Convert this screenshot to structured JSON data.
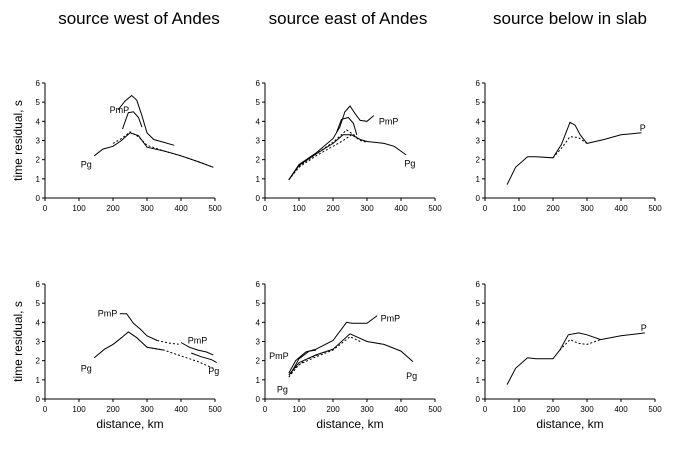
{
  "figure": {
    "columns": [
      "source west of Andes",
      "source east of Andes",
      "source below in slab"
    ],
    "ylabel": "time residual, s",
    "xlabel": "distance, km"
  },
  "chart_data": [
    {
      "type": "line",
      "row": 0,
      "col": 0,
      "xlim": [
        0,
        500
      ],
      "ylim": [
        0,
        6
      ],
      "xticks": [
        0,
        100,
        200,
        300,
        400,
        500
      ],
      "yticks": [
        0,
        1,
        2,
        3,
        4,
        5,
        6
      ],
      "show_xlabel": false,
      "show_ylabel": true,
      "series": [
        {
          "name": "Pg",
          "style": "solid",
          "x": [
            145,
            170,
            200,
            225,
            250,
            275,
            300,
            350,
            400,
            450,
            495
          ],
          "y": [
            2.2,
            2.55,
            2.7,
            3.0,
            3.4,
            3.25,
            2.65,
            2.45,
            2.2,
            1.9,
            1.6
          ]
        },
        {
          "name": "PmP",
          "style": "solid",
          "x": [
            215,
            235,
            255,
            270,
            285,
            300,
            320,
            350,
            380
          ],
          "y": [
            4.6,
            5.05,
            5.35,
            5.1,
            4.3,
            3.4,
            3.05,
            2.9,
            2.75
          ]
        },
        {
          "name": "",
          "style": "solid",
          "x": [
            228,
            245,
            260,
            275,
            285
          ],
          "y": [
            3.6,
            4.45,
            4.5,
            4.2,
            3.7
          ]
        },
        {
          "name": "",
          "style": "dotted",
          "x": [
            200,
            225,
            250,
            275,
            300,
            350,
            400,
            450,
            495
          ],
          "y": [
            2.85,
            3.1,
            3.45,
            3.2,
            2.75,
            2.45,
            2.2,
            1.9,
            1.6
          ]
        }
      ],
      "annotations": [
        {
          "text": "PmP",
          "x": 190,
          "y": 4.6
        },
        {
          "text": "Pg",
          "x": 105,
          "y": 1.75
        }
      ]
    },
    {
      "type": "line",
      "row": 0,
      "col": 1,
      "xlim": [
        0,
        500
      ],
      "ylim": [
        0,
        6
      ],
      "xticks": [
        0,
        100,
        200,
        300,
        400,
        500
      ],
      "yticks": [
        0,
        1,
        2,
        3,
        4,
        5,
        6
      ],
      "show_xlabel": false,
      "show_ylabel": false,
      "series": [
        {
          "name": "Pg",
          "style": "solid",
          "x": [
            70,
            100,
            150,
            200,
            230,
            255,
            280,
            300,
            350,
            380,
            415
          ],
          "y": [
            0.95,
            1.7,
            2.3,
            2.85,
            3.3,
            3.3,
            3.05,
            2.95,
            2.85,
            2.7,
            2.25
          ]
        },
        {
          "name": "PmP",
          "style": "solid",
          "x": [
            70,
            100,
            150,
            200,
            220,
            235,
            250,
            265,
            280,
            300,
            320
          ],
          "y": [
            0.95,
            1.75,
            2.35,
            3.1,
            3.7,
            4.5,
            4.8,
            4.4,
            4.05,
            4.0,
            4.3
          ]
        },
        {
          "name": "",
          "style": "solid",
          "x": [
            210,
            225,
            245,
            260,
            270
          ],
          "y": [
            3.4,
            4.1,
            4.2,
            3.9,
            3.3
          ]
        },
        {
          "name": "",
          "style": "dotted",
          "x": [
            70,
            100,
            150,
            200,
            230,
            255,
            280,
            300
          ],
          "y": [
            0.95,
            1.6,
            2.2,
            2.7,
            3.0,
            3.3,
            3.0,
            2.9
          ]
        },
        {
          "name": "",
          "style": "dotted",
          "x": [
            100,
            150,
            200,
            240,
            270
          ],
          "y": [
            1.65,
            2.3,
            2.9,
            3.55,
            3.2
          ]
        }
      ],
      "annotations": [
        {
          "text": "PmP",
          "x": 335,
          "y": 4.0
        },
        {
          "text": "Pg",
          "x": 410,
          "y": 1.8
        }
      ]
    },
    {
      "type": "line",
      "row": 0,
      "col": 2,
      "xlim": [
        0,
        500
      ],
      "ylim": [
        0,
        6
      ],
      "xticks": [
        0,
        100,
        200,
        300,
        400,
        500
      ],
      "yticks": [
        0,
        1,
        2,
        3,
        4,
        5,
        6
      ],
      "show_xlabel": false,
      "show_ylabel": false,
      "series": [
        {
          "name": "P",
          "style": "solid",
          "x": [
            65,
            90,
            125,
            150,
            200,
            225,
            250,
            265,
            280,
            300,
            350,
            400,
            460
          ],
          "y": [
            0.7,
            1.6,
            2.15,
            2.15,
            2.1,
            2.8,
            3.95,
            3.8,
            3.3,
            2.85,
            3.05,
            3.3,
            3.4
          ]
        },
        {
          "name": "",
          "style": "dotted",
          "x": [
            200,
            225,
            250,
            275,
            300
          ],
          "y": [
            2.1,
            2.6,
            3.2,
            3.15,
            2.85
          ]
        }
      ],
      "annotations": [
        {
          "text": "P",
          "x": 455,
          "y": 3.65
        }
      ]
    },
    {
      "type": "line",
      "row": 1,
      "col": 0,
      "xlim": [
        0,
        500
      ],
      "ylim": [
        0,
        6
      ],
      "xticks": [
        0,
        100,
        200,
        300,
        400,
        500
      ],
      "yticks": [
        0,
        1,
        2,
        3,
        4,
        5,
        6
      ],
      "show_xlabel": true,
      "show_ylabel": true,
      "series": [
        {
          "name": "Pg",
          "style": "solid",
          "x": [
            145,
            175,
            200,
            225,
            245,
            270,
            300,
            350
          ],
          "y": [
            2.15,
            2.6,
            2.85,
            3.2,
            3.5,
            3.2,
            2.7,
            2.55
          ]
        },
        {
          "name": "PmP",
          "style": "solid",
          "x": [
            220,
            240,
            260,
            280,
            300,
            330
          ],
          "y": [
            4.45,
            4.45,
            3.95,
            3.65,
            3.3,
            3.05
          ]
        },
        {
          "name": "",
          "style": "solid",
          "x": [
            400,
            425,
            450,
            475,
            495
          ],
          "y": [
            2.95,
            2.7,
            2.55,
            2.45,
            2.3
          ]
        },
        {
          "name": "",
          "style": "solid",
          "x": [
            430,
            460,
            490,
            505
          ],
          "y": [
            2.4,
            2.2,
            2.05,
            1.9
          ]
        },
        {
          "name": "",
          "style": "dotted",
          "x": [
            300,
            350,
            400,
            450,
            495
          ],
          "y": [
            2.7,
            2.55,
            2.25,
            1.95,
            1.6
          ]
        },
        {
          "name": "",
          "style": "dotted",
          "x": [
            330,
            370,
            400
          ],
          "y": [
            3.05,
            2.9,
            2.85
          ]
        }
      ],
      "annotations": [
        {
          "text": "PmP",
          "x": 155,
          "y": 4.45
        },
        {
          "text": "PmP",
          "x": 420,
          "y": 3.05
        },
        {
          "text": "Pg",
          "x": 105,
          "y": 1.6
        },
        {
          "text": "Pg",
          "x": 480,
          "y": 1.45
        }
      ]
    },
    {
      "type": "line",
      "row": 1,
      "col": 1,
      "xlim": [
        0,
        500
      ],
      "ylim": [
        0,
        6
      ],
      "xticks": [
        0,
        100,
        200,
        300,
        400,
        500
      ],
      "yticks": [
        0,
        1,
        2,
        3,
        4,
        5,
        6
      ],
      "show_xlabel": true,
      "show_ylabel": false,
      "series": [
        {
          "name": "Pg",
          "style": "solid",
          "x": [
            70,
            100,
            150,
            200,
            250,
            300,
            350,
            400,
            435
          ],
          "y": [
            1.25,
            1.9,
            2.3,
            2.6,
            3.4,
            3.0,
            2.85,
            2.5,
            1.95
          ]
        },
        {
          "name": "PmP",
          "style": "solid",
          "x": [
            70,
            90,
            120,
            150,
            200,
            240,
            255,
            300,
            330
          ],
          "y": [
            1.35,
            2.0,
            2.45,
            2.6,
            3.05,
            4.0,
            3.95,
            3.95,
            4.35
          ]
        },
        {
          "name": "",
          "style": "solid",
          "x": [
            75,
            100,
            130,
            150
          ],
          "y": [
            1.3,
            2.1,
            2.5,
            2.55
          ]
        },
        {
          "name": "",
          "style": "dotted",
          "x": [
            70,
            100,
            150,
            200,
            250,
            280
          ],
          "y": [
            1.15,
            1.8,
            2.2,
            2.55,
            3.25,
            3.0
          ]
        },
        {
          "name": "",
          "style": "dotted",
          "x": [
            80,
            120,
            160,
            200
          ],
          "y": [
            1.5,
            2.05,
            2.35,
            2.6
          ]
        }
      ],
      "annotations": [
        {
          "text": "PmP",
          "x": 340,
          "y": 4.2
        },
        {
          "text": "PmP",
          "x": 12,
          "y": 2.25
        },
        {
          "text": "Pg",
          "x": 35,
          "y": 0.5
        },
        {
          "text": "Pg",
          "x": 415,
          "y": 1.2
        }
      ]
    },
    {
      "type": "line",
      "row": 1,
      "col": 2,
      "xlim": [
        0,
        500
      ],
      "ylim": [
        0,
        6
      ],
      "xticks": [
        0,
        100,
        200,
        300,
        400,
        500
      ],
      "yticks": [
        0,
        1,
        2,
        3,
        4,
        5,
        6
      ],
      "show_xlabel": true,
      "show_ylabel": false,
      "series": [
        {
          "name": "P",
          "style": "solid",
          "x": [
            65,
            90,
            125,
            150,
            200,
            220,
            245,
            275,
            300,
            340,
            400,
            450,
            470
          ],
          "y": [
            0.75,
            1.6,
            2.15,
            2.1,
            2.1,
            2.55,
            3.35,
            3.45,
            3.35,
            3.1,
            3.3,
            3.4,
            3.45
          ]
        },
        {
          "name": "",
          "style": "dotted",
          "x": [
            220,
            250,
            275,
            300,
            340
          ],
          "y": [
            2.55,
            3.1,
            2.9,
            2.85,
            3.1
          ]
        }
      ],
      "annotations": [
        {
          "text": "P",
          "x": 458,
          "y": 3.7
        }
      ]
    }
  ]
}
